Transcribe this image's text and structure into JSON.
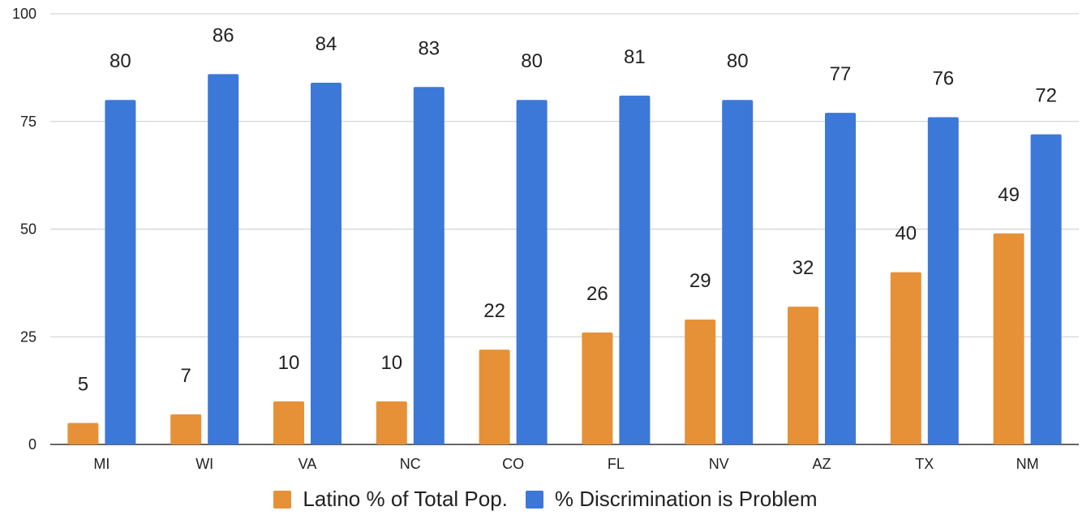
{
  "chart_data": {
    "type": "bar",
    "categories": [
      "MI",
      "WI",
      "VA",
      "NC",
      "CO",
      "FL",
      "NV",
      "AZ",
      "TX",
      "NM"
    ],
    "series": [
      {
        "name": "Latino % of Total Pop.",
        "color": "#E69138",
        "values": [
          5,
          7,
          10,
          10,
          22,
          26,
          29,
          32,
          40,
          49
        ]
      },
      {
        "name": "% Discrimination is Problem",
        "color": "#3C78D8",
        "values": [
          80,
          86,
          84,
          83,
          80,
          81,
          80,
          77,
          76,
          72
        ]
      }
    ],
    "ylim": [
      0,
      100
    ],
    "yticks": [
      "0",
      "25",
      "50",
      "75",
      "100"
    ],
    "grid": true,
    "legend_position": "bottom",
    "data_labels": true
  }
}
